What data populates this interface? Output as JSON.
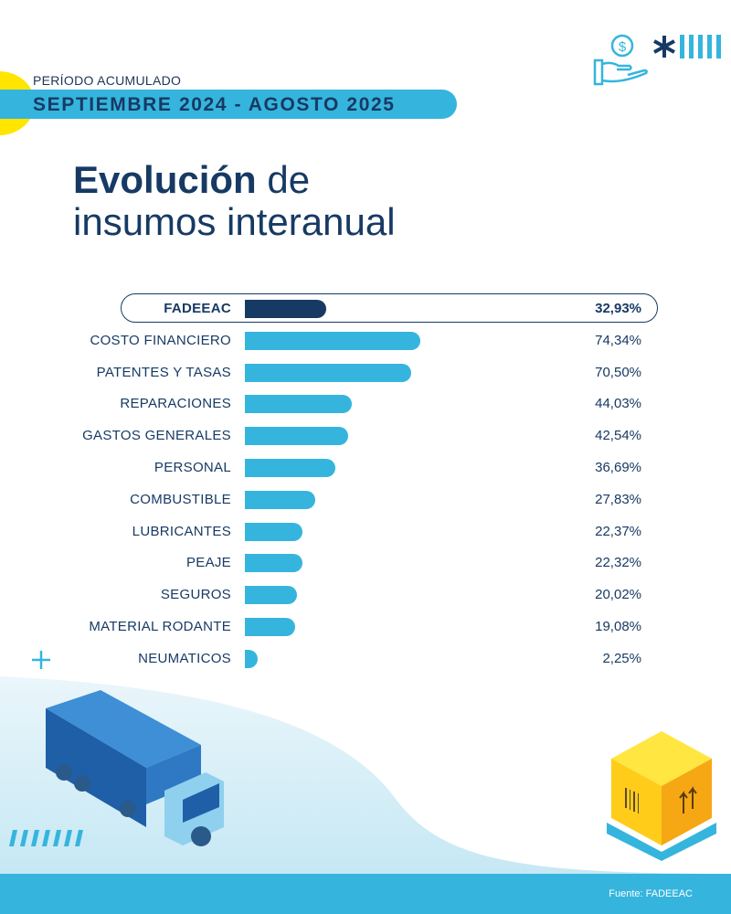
{
  "header": {
    "period_label": "PERÍODO ACUMULADO",
    "period_range": "SEPTIEMBRE 2024 - AGOSTO 2025",
    "title_bold": "Evolución",
    "title_rest": " de",
    "title_line2": "insumos interanual"
  },
  "colors": {
    "navy": "#173a64",
    "accent": "#35b5dd",
    "yellow": "#ffe500"
  },
  "icons": [
    "hand-coin-icon",
    "asterisk-icon",
    "stripes-icon",
    "plus-icon",
    "truck-illustration",
    "box-pallet-illustration"
  ],
  "chart_data": {
    "type": "bar",
    "orientation": "horizontal",
    "title": "Evolución de insumos interanual",
    "highlight": "FADEEAC",
    "categories": [
      "FADEEAC",
      "COSTO FINANCIERO",
      "PATENTES Y TASAS",
      "REPARACIONES",
      "GASTOS GENERALES",
      "PERSONAL",
      "COMBUSTIBLE",
      "LUBRICANTES",
      "PEAJE",
      "SEGUROS",
      "MATERIAL RODANTE",
      "NEUMATICOS"
    ],
    "values": [
      32.93,
      74.34,
      70.5,
      44.03,
      42.54,
      36.69,
      27.83,
      22.37,
      22.32,
      20.02,
      19.08,
      2.25
    ],
    "value_labels": [
      "32,93%",
      "74,34%",
      "70,50%",
      "44,03%",
      "42,54%",
      "36,69%",
      "27,83%",
      "22,37%",
      "22,32%",
      "20,02%",
      "19,08%",
      "2,25%"
    ],
    "unit": "%",
    "grid": false
  },
  "footer": {
    "source": "Fuente: FADEEAC"
  }
}
